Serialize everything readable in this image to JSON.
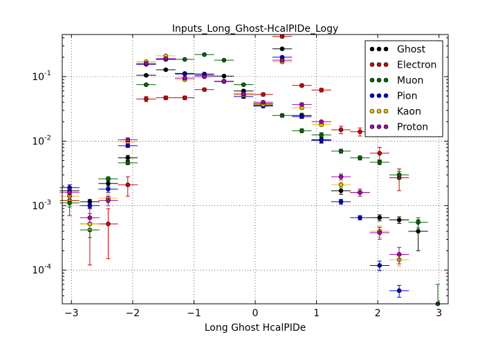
{
  "chart_data": {
    "type": "scatter",
    "title": "Inputs_Long_Ghost-HcalPIDe_Logy",
    "xlabel": "Long Ghost HcalPIDe",
    "ylabel": "",
    "xlim": [
      -3.15,
      3.15
    ],
    "ylim": [
      3e-05,
      0.45
    ],
    "yscale": "log",
    "grid": true,
    "legend_position": "top-right",
    "x_ticks": [
      -3,
      -2,
      -1,
      0,
      1,
      2,
      3
    ],
    "x_tick_labels": [
      "−3",
      "−2",
      "−1",
      "0",
      "1",
      "2",
      "3"
    ],
    "y_ticks": [
      0.0001,
      0.001,
      0.01,
      0.1
    ],
    "y_tick_labels": [
      {
        "base": "10",
        "exp": "-4"
      },
      {
        "base": "10",
        "exp": "-3"
      },
      {
        "base": "10",
        "exp": "-2"
      },
      {
        "base": "10",
        "exp": "-1"
      }
    ],
    "series": [
      {
        "name": "Ghost",
        "color": "#000000",
        "points": [
          [
            -3.03,
            0.0017,
            0.0002
          ],
          [
            -2.7,
            0.00115,
            0.0001
          ],
          [
            -2.4,
            0.0022,
            0.0003
          ],
          [
            -2.08,
            0.0055,
            0.0005
          ],
          [
            -1.78,
            0.105,
            0.004
          ],
          [
            -1.46,
            0.128,
            0.004
          ],
          [
            -1.15,
            0.112,
            0.004
          ],
          [
            -0.83,
            0.105,
            0.004
          ],
          [
            -0.51,
            0.102,
            0.004
          ],
          [
            -0.19,
            0.06,
            0.003
          ],
          [
            0.13,
            0.038,
            0.002
          ],
          [
            0.44,
            0.27,
            0.01
          ],
          [
            0.76,
            0.025,
            0.002
          ],
          [
            1.08,
            0.0105,
            0.001
          ],
          [
            1.4,
            0.0017,
            0.0002
          ],
          [
            1.71,
            0.0016,
            0.0002
          ],
          [
            2.03,
            0.00065,
            7e-05
          ],
          [
            2.35,
            0.0006,
            7e-05
          ],
          [
            2.66,
            0.0004,
            0.0002
          ]
        ]
      },
      {
        "name": "Electron",
        "color": "#cc0000",
        "points": [
          [
            -3.03,
            0.0012,
            0.0005
          ],
          [
            -2.7,
            0.00052,
            0.0004
          ],
          [
            -2.4,
            0.00052,
            0.00037
          ],
          [
            -2.08,
            0.0021,
            0.0007
          ],
          [
            -1.78,
            0.045,
            0.004
          ],
          [
            -1.46,
            0.047,
            0.003
          ],
          [
            -1.15,
            0.047,
            0.003
          ],
          [
            -0.83,
            0.063,
            0.003
          ],
          [
            -0.51,
            0.085,
            0.003
          ],
          [
            -0.19,
            0.052,
            0.003
          ],
          [
            0.13,
            0.053,
            0.003
          ],
          [
            0.44,
            0.42,
            0.02
          ],
          [
            0.76,
            0.073,
            0.004
          ],
          [
            1.08,
            0.062,
            0.004
          ],
          [
            1.4,
            0.015,
            0.002
          ],
          [
            1.71,
            0.014,
            0.002
          ],
          [
            2.03,
            0.0065,
            0.0015
          ],
          [
            2.35,
            0.0027,
            0.001
          ]
        ]
      },
      {
        "name": "Muon",
        "color": "#006600",
        "points": [
          [
            -3.03,
            0.0011,
            0.00015
          ],
          [
            -2.7,
            0.00042,
            0.0001
          ],
          [
            -2.4,
            0.0026,
            0.0002
          ],
          [
            -2.08,
            0.0046,
            0.0003
          ],
          [
            -1.78,
            0.075,
            0.003
          ],
          [
            -1.46,
            0.19,
            0.004
          ],
          [
            -1.15,
            0.185,
            0.004
          ],
          [
            -0.83,
            0.22,
            0.005
          ],
          [
            -0.51,
            0.18,
            0.004
          ],
          [
            -0.19,
            0.075,
            0.003
          ],
          [
            0.13,
            0.036,
            0.002
          ],
          [
            0.44,
            0.025,
            0.0015
          ],
          [
            0.76,
            0.0145,
            0.001
          ],
          [
            1.08,
            0.0125,
            0.001
          ],
          [
            1.4,
            0.007,
            0.0005
          ],
          [
            1.71,
            0.0055,
            0.0004
          ],
          [
            2.03,
            0.0047,
            0.0004
          ],
          [
            2.35,
            0.003,
            0.0004
          ],
          [
            2.66,
            0.00055,
            0.0001
          ],
          [
            2.98,
            3e-05,
            3e-05
          ]
        ]
      },
      {
        "name": "Pion",
        "color": "#0000cc",
        "points": [
          [
            -3.03,
            0.0019,
            0.0002
          ],
          [
            -2.7,
            0.001,
            0.0001
          ],
          [
            -2.4,
            0.0018,
            0.0002
          ],
          [
            -2.08,
            0.0085,
            0.0005
          ],
          [
            -1.78,
            0.155,
            0.004
          ],
          [
            -1.46,
            0.185,
            0.004
          ],
          [
            -1.15,
            0.11,
            0.004
          ],
          [
            -0.83,
            0.11,
            0.004
          ],
          [
            -0.51,
            0.084,
            0.003
          ],
          [
            -0.19,
            0.049,
            0.003
          ],
          [
            0.13,
            0.035,
            0.002
          ],
          [
            0.44,
            0.2,
            0.008
          ],
          [
            0.76,
            0.024,
            0.0015
          ],
          [
            1.08,
            0.0103,
            0.001
          ],
          [
            1.4,
            0.00115,
            0.0001
          ],
          [
            1.71,
            0.00065,
            5e-05
          ],
          [
            2.03,
            0.000118,
            2e-05
          ],
          [
            2.35,
            4.8e-05,
            1e-05
          ]
        ]
      },
      {
        "name": "Kaon",
        "color": "#e6c000",
        "points": [
          [
            -3.03,
            0.0014,
            0.0002
          ],
          [
            -2.7,
            0.00052,
            0.0001
          ],
          [
            -2.4,
            0.0013,
            0.0002
          ],
          [
            -2.08,
            0.0098,
            0.0006
          ],
          [
            -1.78,
            0.17,
            0.005
          ],
          [
            -1.46,
            0.21,
            0.005
          ],
          [
            -1.15,
            0.09,
            0.004
          ],
          [
            -0.83,
            0.1,
            0.004
          ],
          [
            -0.51,
            0.085,
            0.003
          ],
          [
            -0.19,
            0.052,
            0.003
          ],
          [
            0.13,
            0.037,
            0.002
          ],
          [
            0.44,
            0.17,
            0.008
          ],
          [
            0.76,
            0.033,
            0.002
          ],
          [
            1.08,
            0.018,
            0.001
          ],
          [
            1.4,
            0.0021,
            0.0002
          ],
          [
            1.71,
            0.0016,
            0.0002
          ],
          [
            2.03,
            0.0004,
            8e-05
          ],
          [
            2.35,
            0.000145,
            3e-05
          ]
        ]
      },
      {
        "name": "Proton",
        "color": "#aa00aa",
        "points": [
          [
            -3.03,
            0.0016,
            0.0002
          ],
          [
            -2.7,
            0.00065,
            0.0001
          ],
          [
            -2.4,
            0.0012,
            0.0002
          ],
          [
            -2.08,
            0.0105,
            0.0007
          ],
          [
            -1.78,
            0.16,
            0.005
          ],
          [
            -1.46,
            0.19,
            0.005
          ],
          [
            -1.15,
            0.095,
            0.004
          ],
          [
            -0.83,
            0.1,
            0.004
          ],
          [
            -0.51,
            0.085,
            0.003
          ],
          [
            -0.19,
            0.054,
            0.003
          ],
          [
            0.13,
            0.04,
            0.002
          ],
          [
            0.44,
            0.18,
            0.008
          ],
          [
            0.76,
            0.037,
            0.002
          ],
          [
            1.08,
            0.02,
            0.001
          ],
          [
            1.4,
            0.0028,
            0.0003
          ],
          [
            1.71,
            0.0016,
            0.0002
          ],
          [
            2.03,
            0.00038,
            8e-05
          ],
          [
            2.35,
            0.000175,
            5e-05
          ]
        ]
      }
    ]
  }
}
